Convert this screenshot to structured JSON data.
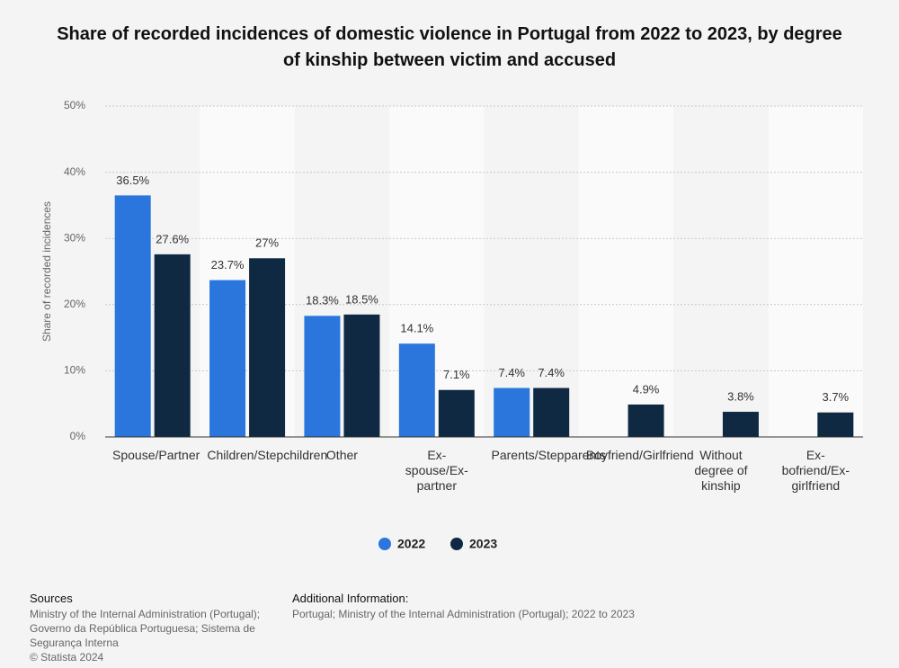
{
  "chart_data": {
    "type": "bar",
    "title": "Share of recorded incidences of domestic violence in Portugal from 2022 to 2023, by degree of kinship between victim and accused",
    "y_label": "Share of recorded incidences",
    "categories": [
      "Spouse/Partner",
      "Children/Stepchildren",
      "Other",
      "Ex-spouse/Ex-partner",
      "Parents/Stepparents",
      "Boyfriend/Girlfriend",
      "Without degree of kinship",
      "Ex-bofriend/Ex-girlfriend"
    ],
    "series": [
      {
        "name": "2022",
        "color": "#2a76dd",
        "values": [
          36.5,
          23.7,
          18.3,
          14.1,
          7.4,
          null,
          null,
          null
        ],
        "value_labels": [
          "36.5%",
          "23.7%",
          "18.3%",
          "14.1%",
          "7.4%",
          null,
          null,
          null
        ]
      },
      {
        "name": "2023",
        "color": "#0f2942",
        "values": [
          27.6,
          27,
          18.5,
          7.1,
          7.4,
          4.9,
          3.8,
          3.7
        ],
        "value_labels": [
          "27.6%",
          "27%",
          "18.5%",
          "7.1%",
          "7.4%",
          "4.9%",
          "3.8%",
          "3.7%"
        ]
      }
    ],
    "ylim": [
      0,
      50
    ],
    "yticks": [
      {
        "value": 0,
        "label": "0%"
      },
      {
        "value": 10,
        "label": "10%"
      },
      {
        "value": 20,
        "label": "20%"
      },
      {
        "value": 30,
        "label": "30%"
      },
      {
        "value": 40,
        "label": "40%"
      },
      {
        "value": 50,
        "label": "50%"
      }
    ],
    "grid": true
  },
  "footer": {
    "sources_title": "Sources",
    "sources_lines": [
      "Ministry of the Internal Administration (Portugal);",
      "Governo da República Portuguesa; Sistema de",
      "Segurança Interna",
      "© Statista 2024"
    ],
    "info_title": "Additional Information:",
    "info_text": "Portugal; Ministry of the Internal Administration (Portugal); 2022 to 2023"
  }
}
